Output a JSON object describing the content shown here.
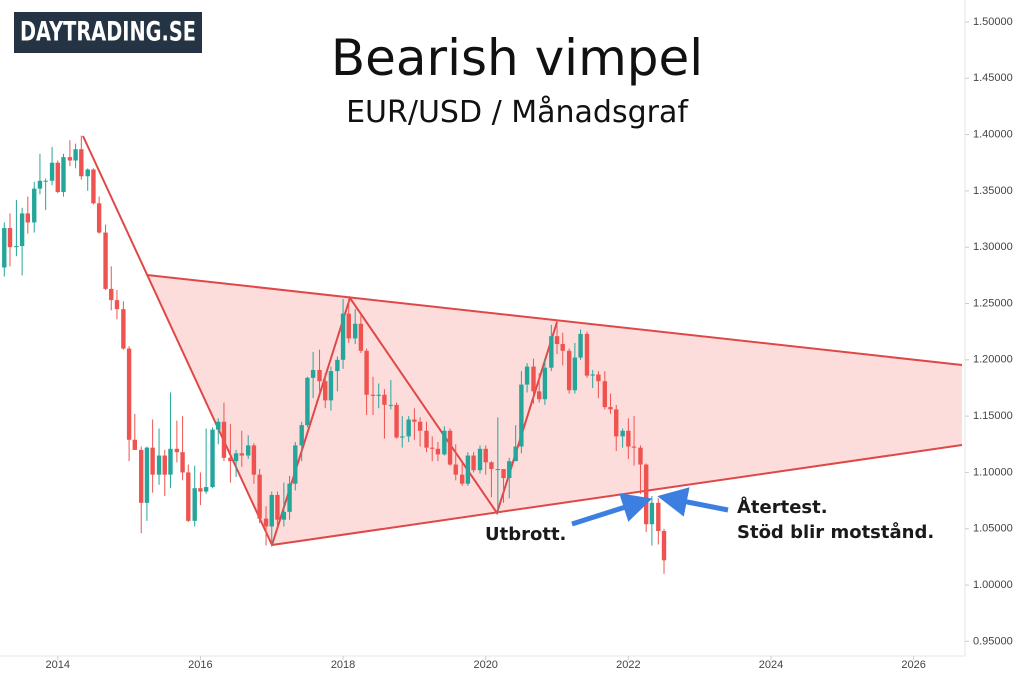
{
  "logo": "DAYTRADING.SE",
  "chart_data": {
    "type": "candlestick",
    "title": "Bearish vimpel",
    "subtitle": "EUR/USD / Månadsgraf",
    "up_color": "#26a69a",
    "down_color": "#ef5350",
    "x": [
      2013.25,
      2013.33,
      2013.42,
      2013.5,
      2013.58,
      2013.67,
      2013.75,
      2013.83,
      2013.92,
      2014.0,
      2014.08,
      2014.17,
      2014.25,
      2014.33,
      2014.42,
      2014.5,
      2014.58,
      2014.67,
      2014.75,
      2014.83,
      2014.92,
      2015.0,
      2015.08,
      2015.17,
      2015.25,
      2015.33,
      2015.42,
      2015.5,
      2015.58,
      2015.67,
      2015.75,
      2015.83,
      2015.92,
      2016.0,
      2016.08,
      2016.17,
      2016.25,
      2016.33,
      2016.42,
      2016.5,
      2016.58,
      2016.67,
      2016.75,
      2016.83,
      2016.92,
      2017.0,
      2017.08,
      2017.17,
      2017.25,
      2017.33,
      2017.42,
      2017.5,
      2017.58,
      2017.67,
      2017.75,
      2017.83,
      2017.92,
      2018.0,
      2018.08,
      2018.17,
      2018.25,
      2018.33,
      2018.42,
      2018.5,
      2018.58,
      2018.67,
      2018.75,
      2018.83,
      2018.92,
      2019.0,
      2019.08,
      2019.17,
      2019.25,
      2019.33,
      2019.42,
      2019.5,
      2019.58,
      2019.67,
      2019.75,
      2019.83,
      2019.92,
      2020.0,
      2020.08,
      2020.17,
      2020.25,
      2020.33,
      2020.42,
      2020.5,
      2020.58,
      2020.67,
      2020.75,
      2020.83,
      2020.92,
      2021.0,
      2021.08,
      2021.17,
      2021.25,
      2021.33,
      2021.42,
      2021.5,
      2021.58,
      2021.67,
      2021.75,
      2021.83,
      2021.92,
      2022.0,
      2022.08,
      2022.17,
      2022.25,
      2022.33,
      2022.42,
      2022.5
    ],
    "open": [
      1.282,
      1.317,
      1.3,
      1.301,
      1.33,
      1.322,
      1.352,
      1.359,
      1.359,
      1.375,
      1.349,
      1.38,
      1.377,
      1.387,
      1.363,
      1.369,
      1.339,
      1.313,
      1.263,
      1.253,
      1.245,
      1.21,
      1.129,
      1.12,
      1.073,
      1.122,
      1.098,
      1.115,
      1.098,
      1.121,
      1.118,
      1.1,
      1.057,
      1.086,
      1.083,
      1.087,
      1.138,
      1.145,
      1.113,
      1.11,
      1.117,
      1.115,
      1.124,
      1.098,
      1.059,
      1.052,
      1.08,
      1.058,
      1.065,
      1.09,
      1.124,
      1.142,
      1.184,
      1.191,
      1.181,
      1.164,
      1.19,
      1.2,
      1.241,
      1.219,
      1.232,
      1.208,
      1.169,
      1.168,
      1.169,
      1.16,
      1.16,
      1.131,
      1.132,
      1.147,
      1.145,
      1.137,
      1.122,
      1.121,
      1.116,
      1.137,
      1.107,
      1.098,
      1.09,
      1.115,
      1.102,
      1.121,
      1.109,
      1.103,
      1.103,
      1.095,
      1.11,
      1.123,
      1.178,
      1.194,
      1.172,
      1.165,
      1.193,
      1.221,
      1.214,
      1.208,
      1.173,
      1.202,
      1.223,
      1.186,
      1.187,
      1.181,
      1.158,
      1.156,
      1.132,
      1.137,
      1.123,
      1.122,
      1.107,
      1.054,
      1.073,
      1.048
    ],
    "high": [
      1.322,
      1.33,
      1.342,
      1.335,
      1.345,
      1.358,
      1.383,
      1.361,
      1.389,
      1.377,
      1.383,
      1.395,
      1.392,
      1.399,
      1.37,
      1.37,
      1.345,
      1.32,
      1.283,
      1.262,
      1.252,
      1.212,
      1.152,
      1.123,
      1.123,
      1.147,
      1.139,
      1.12,
      1.171,
      1.146,
      1.15,
      1.107,
      1.106,
      1.1,
      1.139,
      1.14,
      1.148,
      1.162,
      1.143,
      1.12,
      1.137,
      1.133,
      1.126,
      1.103,
      1.07,
      1.083,
      1.083,
      1.091,
      1.097,
      1.127,
      1.145,
      1.185,
      1.207,
      1.209,
      1.188,
      1.194,
      1.203,
      1.254,
      1.256,
      1.245,
      1.24,
      1.21,
      1.185,
      1.179,
      1.174,
      1.182,
      1.162,
      1.15,
      1.15,
      1.157,
      1.149,
      1.145,
      1.132,
      1.127,
      1.141,
      1.139,
      1.125,
      1.108,
      1.118,
      1.118,
      1.124,
      1.124,
      1.11,
      1.149,
      1.102,
      1.113,
      1.142,
      1.19,
      1.197,
      1.201,
      1.188,
      1.2,
      1.231,
      1.235,
      1.224,
      1.21,
      1.215,
      1.227,
      1.225,
      1.191,
      1.19,
      1.19,
      1.17,
      1.16,
      1.139,
      1.148,
      1.15,
      1.124,
      1.108,
      1.079,
      1.077,
      1.05
    ],
    "low": [
      1.274,
      1.283,
      1.292,
      1.275,
      1.312,
      1.313,
      1.347,
      1.333,
      1.355,
      1.348,
      1.345,
      1.372,
      1.37,
      1.36,
      1.35,
      1.338,
      1.312,
      1.262,
      1.244,
      1.236,
      1.209,
      1.11,
      1.12,
      1.046,
      1.057,
      1.082,
      1.089,
      1.079,
      1.086,
      1.109,
      1.093,
      1.056,
      1.052,
      1.071,
      1.081,
      1.086,
      1.125,
      1.11,
      1.091,
      1.096,
      1.105,
      1.112,
      1.09,
      1.055,
      1.035,
      1.034,
      1.049,
      1.052,
      1.058,
      1.084,
      1.11,
      1.14,
      1.166,
      1.172,
      1.157,
      1.155,
      1.172,
      1.192,
      1.215,
      1.214,
      1.206,
      1.151,
      1.151,
      1.157,
      1.13,
      1.156,
      1.13,
      1.122,
      1.127,
      1.129,
      1.123,
      1.118,
      1.11,
      1.11,
      1.115,
      1.106,
      1.093,
      1.088,
      1.088,
      1.1,
      1.099,
      1.098,
      1.078,
      1.064,
      1.073,
      1.077,
      1.111,
      1.117,
      1.171,
      1.161,
      1.162,
      1.16,
      1.19,
      1.205,
      1.195,
      1.17,
      1.17,
      1.2,
      1.184,
      1.175,
      1.166,
      1.156,
      1.152,
      1.119,
      1.122,
      1.112,
      1.106,
      1.081,
      1.047,
      1.035,
      1.036,
      1.01
    ],
    "close": [
      1.317,
      1.3,
      1.301,
      1.33,
      1.322,
      1.352,
      1.359,
      1.359,
      1.375,
      1.349,
      1.38,
      1.377,
      1.387,
      1.363,
      1.369,
      1.339,
      1.313,
      1.263,
      1.253,
      1.245,
      1.21,
      1.129,
      1.12,
      1.073,
      1.122,
      1.098,
      1.115,
      1.098,
      1.121,
      1.118,
      1.1,
      1.057,
      1.086,
      1.083,
      1.087,
      1.138,
      1.145,
      1.113,
      1.11,
      1.117,
      1.115,
      1.124,
      1.098,
      1.059,
      1.052,
      1.08,
      1.058,
      1.065,
      1.09,
      1.124,
      1.142,
      1.184,
      1.191,
      1.181,
      1.164,
      1.19,
      1.2,
      1.241,
      1.219,
      1.232,
      1.208,
      1.169,
      1.168,
      1.169,
      1.16,
      1.16,
      1.131,
      1.132,
      1.147,
      1.145,
      1.137,
      1.122,
      1.121,
      1.116,
      1.137,
      1.107,
      1.098,
      1.09,
      1.115,
      1.102,
      1.121,
      1.109,
      1.103,
      1.103,
      1.095,
      1.11,
      1.123,
      1.178,
      1.194,
      1.172,
      1.165,
      1.193,
      1.221,
      1.214,
      1.208,
      1.173,
      1.202,
      1.223,
      1.186,
      1.187,
      1.181,
      1.158,
      1.156,
      1.132,
      1.137,
      1.123,
      1.122,
      1.107,
      1.054,
      1.073,
      1.048,
      1.022
    ],
    "xlim": [
      2013.19,
      2026.72
    ],
    "ylim": [
      0.937,
      1.5195
    ],
    "xticks": [
      2014,
      2016,
      2018,
      2020,
      2022,
      2024,
      2026
    ],
    "yticks": [
      {
        "value": 0.95,
        "label": "0.95000"
      },
      {
        "value": 1.0,
        "label": "1.00000"
      },
      {
        "value": 1.05,
        "label": "1.05000"
      },
      {
        "value": 1.1,
        "label": "1.10000"
      },
      {
        "value": 1.15,
        "label": "1.15000"
      },
      {
        "value": 1.2,
        "label": "1.20000"
      },
      {
        "value": 1.25,
        "label": "1.25000"
      },
      {
        "value": 1.3,
        "label": "1.30000"
      },
      {
        "value": 1.35,
        "label": "1.35000"
      },
      {
        "value": 1.4,
        "label": "1.40000"
      },
      {
        "value": 1.45,
        "label": "1.45000"
      },
      {
        "value": 1.5,
        "label": "1.50000"
      }
    ],
    "annotations": [
      "Utbrott.",
      "Återtest.",
      "Stöd blir motstånd."
    ]
  }
}
